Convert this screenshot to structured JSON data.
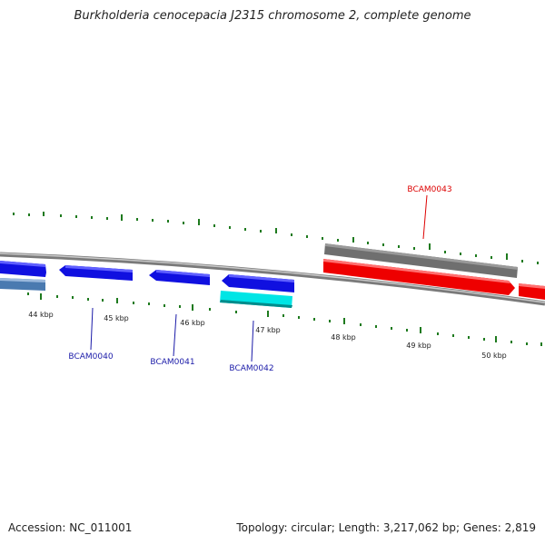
{
  "title": "Burkholderia cenocepacia J2315 chromosome 2, complete genome",
  "footer": {
    "accession": "Accession: NC_011001",
    "summary": "Topology: circular; Length: 3,217,062 bp; Genes: 2,819"
  },
  "colors": {
    "backbone": "#8a8a8a",
    "tick": "#1e7a1e",
    "gene_blue": "#1010e0",
    "gene_steel": "#4a7ab0",
    "gene_cyan": "#00e5e5",
    "gene_red": "#ee0000",
    "gene_gray": "#6f6f6f",
    "label_blue": "#1a1aa8",
    "label_red": "#dd0000"
  },
  "scale_labels": [
    "44 kbp",
    "45 kbp",
    "46 kbp",
    "47 kbp",
    "48 kbp",
    "49 kbp",
    "50 kbp"
  ],
  "gene_labels": {
    "BCAM0040": "BCAM0040",
    "BCAM0041": "BCAM0041",
    "BCAM0042": "BCAM0042",
    "BCAM0043": "BCAM0043"
  }
}
